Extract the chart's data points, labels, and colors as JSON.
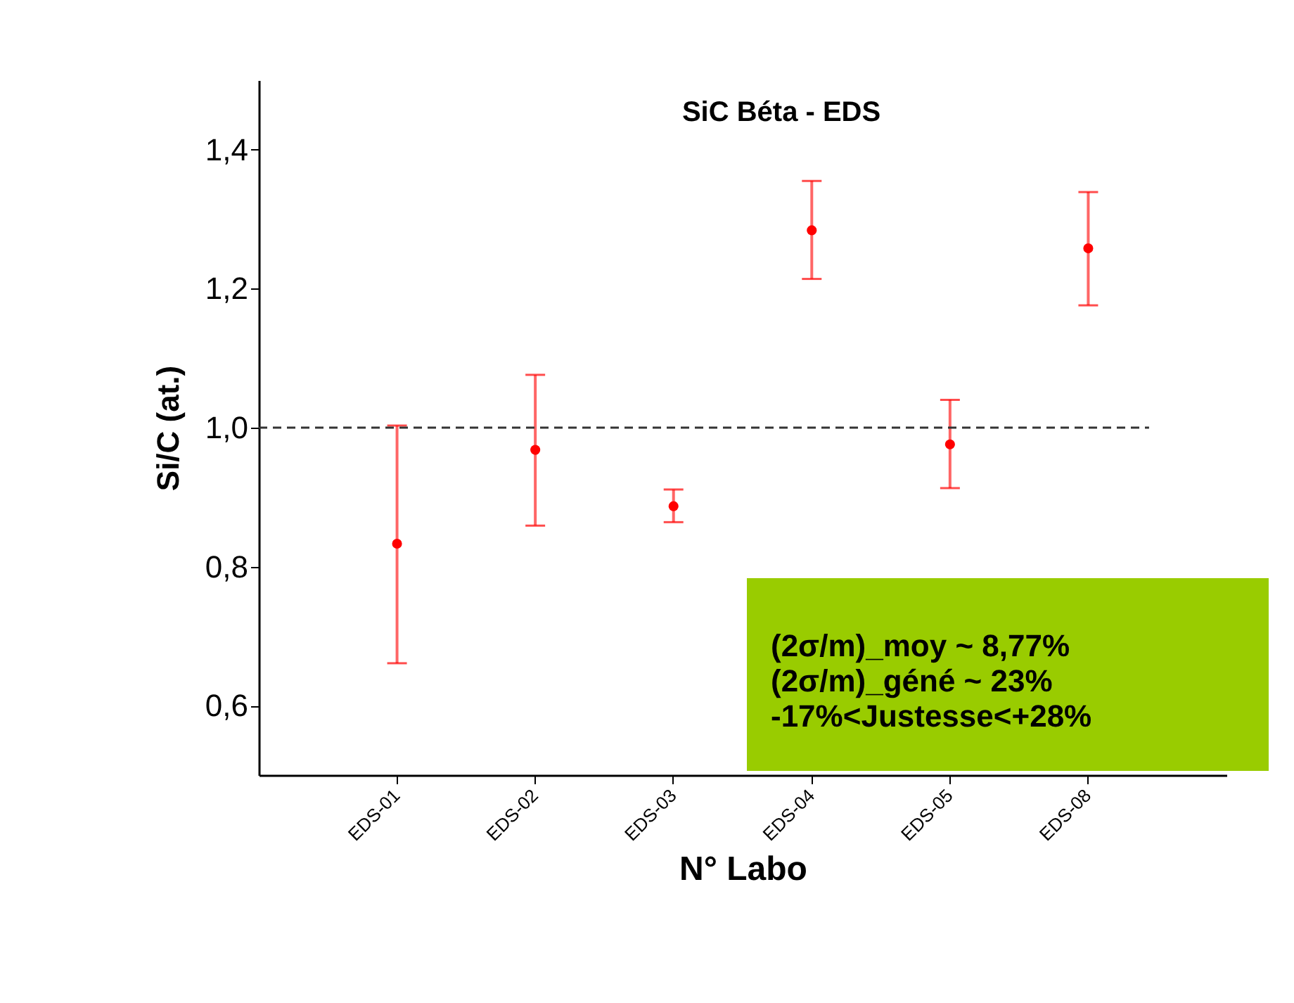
{
  "chart_data": {
    "type": "scatter",
    "title": "SiC Béta - EDS",
    "xlabel": "N° Labo",
    "ylabel": "Si/C (at.)",
    "categories": [
      "EDS-01",
      "EDS-02",
      "EDS-03",
      "EDS-04",
      "EDS-05",
      "EDS-08"
    ],
    "series": [
      {
        "color": "#ff0000",
        "values": [
          0.833,
          0.968,
          0.887,
          1.284,
          0.976,
          1.258
        ],
        "errors": [
          [
            0.661,
            1.003
          ],
          [
            0.859,
            1.076
          ],
          [
            0.864,
            0.911
          ],
          [
            1.214,
            1.355
          ],
          [
            0.913,
            1.04
          ],
          [
            1.176,
            1.339
          ]
        ]
      }
    ],
    "ylim": [
      0.5,
      1.5
    ],
    "yticks": [
      {
        "value": 0.6,
        "label": "0,6"
      },
      {
        "value": 0.8,
        "label": "0,8"
      },
      {
        "value": 1.0,
        "label": "1,0"
      },
      {
        "value": 1.2,
        "label": "1,2"
      },
      {
        "value": 1.4,
        "label": "1,4"
      }
    ],
    "ref_lines": [
      {
        "axis": "y",
        "value": 1.0,
        "color": "#333333",
        "line_style": "dashed"
      }
    ],
    "annotations": [
      "(2σ/m)_moy ~ 8,77%",
      "(2σ/m)_géné ~ 23%",
      "-17%<Justesse<+28%"
    ],
    "grid": false,
    "marker": "circle"
  }
}
